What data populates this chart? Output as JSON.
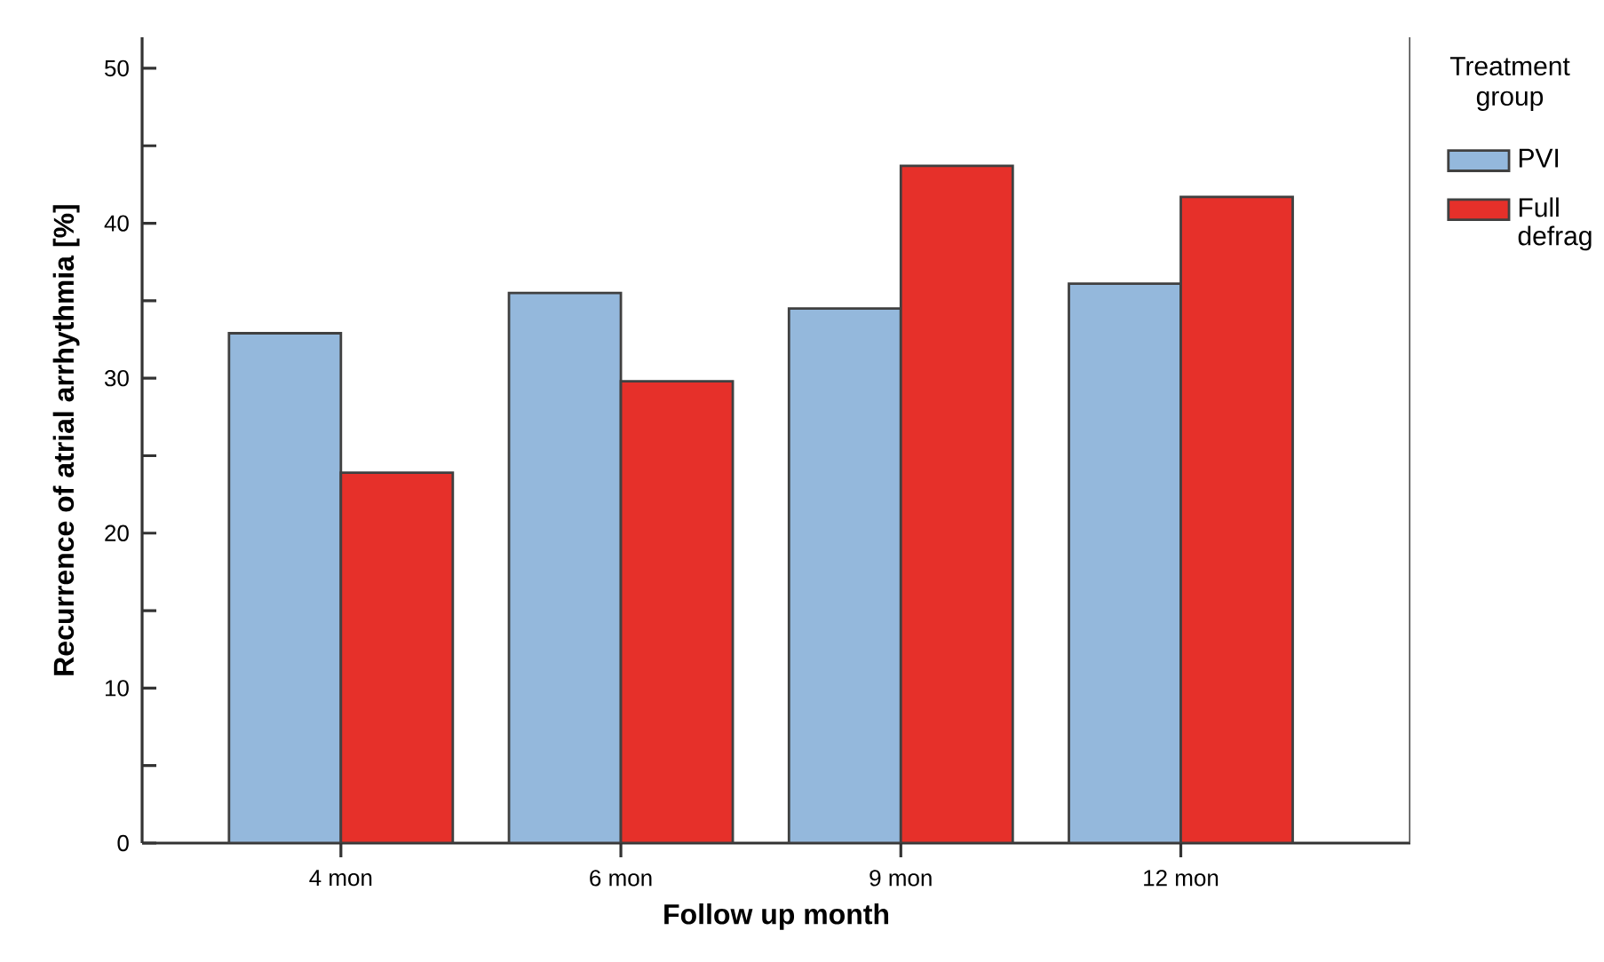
{
  "chart_data": {
    "type": "bar",
    "xlabel": "Follow up month",
    "ylabel": "Recurrence of atrial arrhythmia [%]",
    "legend_title": "Treatment group",
    "categories": [
      "4 mon",
      "6 mon",
      "9 mon",
      "12 mon"
    ],
    "series": [
      {
        "name": "PVI",
        "color": "#94b8dc",
        "values": [
          32.9,
          35.5,
          34.5,
          36.1
        ]
      },
      {
        "name": "Full defrag",
        "color": "#e6302a",
        "values": [
          23.9,
          29.8,
          43.7,
          41.7
        ]
      }
    ],
    "ylim": [
      0,
      52
    ],
    "yticks": [
      0,
      {
        "value": 5,
        "label": null
      },
      10,
      {
        "value": 15,
        "label": null
      },
      20,
      {
        "value": 25,
        "label": null
      },
      30,
      {
        "value": 35,
        "label": null
      },
      40,
      {
        "value": 45,
        "label": null
      },
      50
    ],
    "grid": false,
    "legend": "right"
  }
}
